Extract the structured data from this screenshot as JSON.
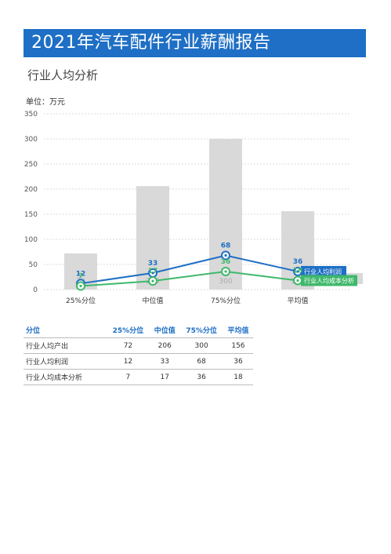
{
  "banner_title": "2021年汽车配件行业薪酬报告",
  "subtitle": "行业人均分析",
  "unit_label": "单位：万元",
  "chart_data": {
    "type": "bar+line",
    "categories": [
      "25%分位",
      "中位值",
      "75%分位",
      "平均值"
    ],
    "ylim": [
      0,
      350
    ],
    "yticks": [
      0,
      50,
      100,
      150,
      200,
      250,
      300,
      350
    ],
    "bar_series": {
      "name": "行业人均产出",
      "values": [
        72,
        206,
        300,
        156
      ],
      "color": "#d9d9d9"
    },
    "line_series": [
      {
        "name": "行业人均利润",
        "values": [
          12,
          33,
          68,
          36
        ],
        "color": "#1e6fc5"
      },
      {
        "name": "行业人均成本分析",
        "values": [
          7,
          17,
          36,
          18
        ],
        "color": "#3fb86b"
      }
    ]
  },
  "table": {
    "headers": [
      "分位",
      "25%分位",
      "中位值",
      "75%分位",
      "平均值"
    ],
    "rows": [
      [
        "行业人均产出",
        "72",
        "206",
        "300",
        "156"
      ],
      [
        "行业人均利润",
        "12",
        "33",
        "68",
        "36"
      ],
      [
        "行业人均成本分析",
        "7",
        "17",
        "36",
        "18"
      ]
    ]
  }
}
